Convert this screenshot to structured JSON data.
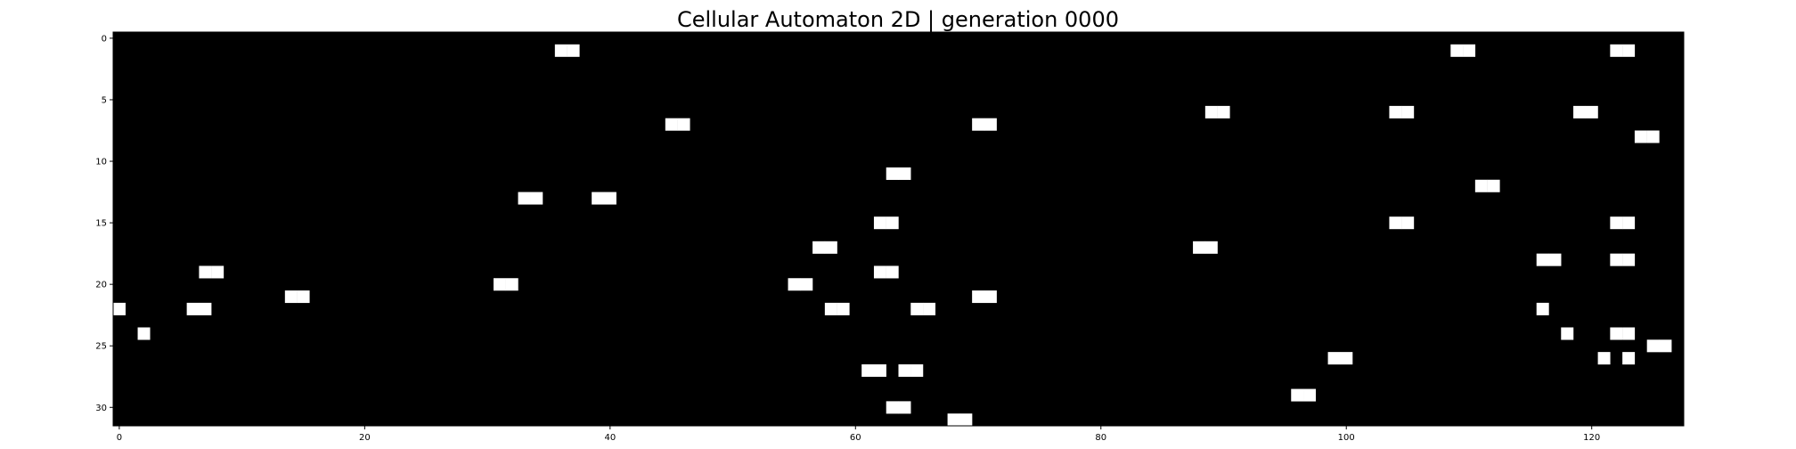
{
  "chart_data": {
    "type": "heatmap",
    "title": "Cellular Automaton 2D | generation 0000",
    "xlabel": "",
    "ylabel": "",
    "grid": false,
    "colormap": {
      "off": "#000000",
      "on": "#ffffff"
    },
    "ncols": 128,
    "nrows": 32,
    "xlim": [
      -0.5,
      127.5
    ],
    "ylim": [
      31.5,
      -0.5
    ],
    "xticks": [
      0,
      20,
      40,
      60,
      80,
      100,
      120
    ],
    "yticks": [
      0,
      5,
      10,
      15,
      20,
      25,
      30
    ],
    "xtick_labels": [
      "0",
      "20",
      "40",
      "60",
      "80",
      "100",
      "120"
    ],
    "ytick_labels": [
      "0",
      "5",
      "10",
      "15",
      "20",
      "25",
      "30"
    ],
    "alive_cells": [
      {
        "row": 1,
        "cols": [
          36,
          37,
          109,
          110,
          122,
          123
        ]
      },
      {
        "row": 6,
        "cols": [
          89,
          90,
          104,
          105,
          119,
          120
        ]
      },
      {
        "row": 7,
        "cols": [
          45,
          46,
          70,
          71
        ]
      },
      {
        "row": 8,
        "cols": [
          124,
          125
        ]
      },
      {
        "row": 11,
        "cols": [
          63,
          64
        ]
      },
      {
        "row": 12,
        "cols": [
          111,
          112
        ]
      },
      {
        "row": 13,
        "cols": [
          33,
          34,
          39,
          40
        ]
      },
      {
        "row": 15,
        "cols": [
          62,
          63,
          104,
          105,
          122,
          123
        ]
      },
      {
        "row": 17,
        "cols": [
          57,
          58,
          88,
          89
        ]
      },
      {
        "row": 18,
        "cols": [
          116,
          117,
          122,
          123
        ]
      },
      {
        "row": 19,
        "cols": [
          7,
          8,
          62,
          63
        ]
      },
      {
        "row": 20,
        "cols": [
          31,
          32,
          55,
          56
        ]
      },
      {
        "row": 21,
        "cols": [
          14,
          15,
          70,
          71
        ]
      },
      {
        "row": 22,
        "cols": [
          0,
          6,
          7,
          58,
          59,
          65,
          66,
          116
        ]
      },
      {
        "row": 24,
        "cols": [
          2,
          118,
          122,
          123
        ]
      },
      {
        "row": 25,
        "cols": [
          125,
          126
        ]
      },
      {
        "row": 26,
        "cols": [
          99,
          100,
          121,
          123
        ]
      },
      {
        "row": 27,
        "cols": [
          61,
          62,
          64,
          65
        ]
      },
      {
        "row": 29,
        "cols": [
          96,
          97
        ]
      },
      {
        "row": 30,
        "cols": [
          63,
          64
        ]
      },
      {
        "row": 31,
        "cols": [
          68,
          69
        ]
      }
    ]
  }
}
